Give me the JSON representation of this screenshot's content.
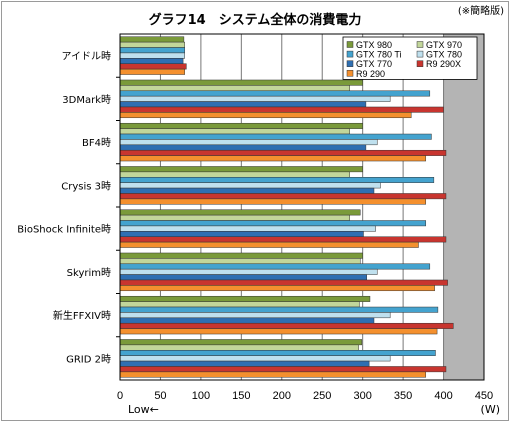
{
  "chart_data": {
    "type": "bar",
    "orientation": "horizontal",
    "title": "グラフ14　システム全体の消費電力",
    "note": "(※簡略版)",
    "xlabel": "(W)",
    "low_label": "Low←",
    "xlim": [
      0,
      450
    ],
    "xticks": [
      0,
      50,
      100,
      150,
      200,
      250,
      300,
      350,
      400,
      450
    ],
    "grid": true,
    "legend_position": "top-right",
    "categories": [
      "アイドル時",
      "3DMark時",
      "BF4時",
      "Crysis 3時",
      "BioShock Infinite時",
      "Skyrim時",
      "新生FFXIV時",
      "GRID 2時"
    ],
    "series": [
      {
        "name": "GTX 980",
        "color": "#7a9a3a",
        "values": [
          79,
          300,
          300,
          300,
          297,
          300,
          309,
          299
        ]
      },
      {
        "name": "GTX 970",
        "color": "#c2d69a",
        "values": [
          80,
          284,
          284,
          284,
          284,
          297,
          296,
          295
        ]
      },
      {
        "name": "GTX 780 Ti",
        "color": "#44a3cf",
        "values": [
          80,
          383,
          385,
          388,
          378,
          383,
          393,
          390
        ]
      },
      {
        "name": "GTX 780",
        "color": "#bfe0ee",
        "values": [
          80,
          334,
          318,
          322,
          316,
          318,
          334,
          334
        ]
      },
      {
        "name": "GTX 770",
        "color": "#2f6fb2",
        "values": [
          78,
          304,
          304,
          314,
          301,
          305,
          314,
          308
        ]
      },
      {
        "name": "R9 290X",
        "color": "#c8352f",
        "values": [
          82,
          400,
          403,
          403,
          403,
          405,
          412,
          403
        ]
      },
      {
        "name": "R9 290",
        "color": "#f4902e",
        "values": [
          80,
          360,
          378,
          378,
          369,
          389,
          392,
          378
        ]
      }
    ]
  }
}
